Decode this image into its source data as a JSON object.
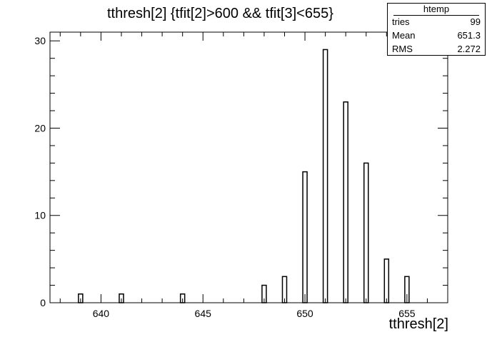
{
  "chart_data": {
    "type": "bar",
    "title": "tthresh[2] {tfit[2]>600 && tfit[3]<655}",
    "xlabel": "tthresh[2]",
    "ylabel": "",
    "xlim": [
      637.5,
      657
    ],
    "ylim": [
      0,
      31
    ],
    "x_ticks": [
      640,
      645,
      650,
      655
    ],
    "y_ticks": [
      0,
      10,
      20,
      30
    ],
    "grid": false,
    "legend": "none",
    "x": [
      639,
      641,
      644,
      648,
      649,
      650,
      651,
      652,
      653,
      654,
      655
    ],
    "values": [
      1,
      1,
      1,
      2,
      3,
      15,
      29,
      23,
      16,
      5,
      3
    ],
    "stats_box": {
      "name": "htemp",
      "rows": [
        {
          "label": "tries",
          "value": "99"
        },
        {
          "label": "Mean",
          "value": "651.3"
        },
        {
          "label": "RMS",
          "value": "2.272"
        }
      ]
    }
  }
}
